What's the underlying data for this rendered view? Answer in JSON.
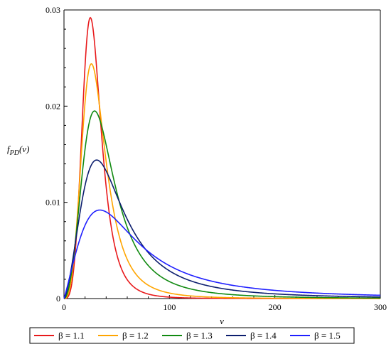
{
  "chart_data": {
    "type": "line",
    "title": "",
    "xlabel": "v",
    "ylabel_main": "f",
    "ylabel_sub": "PD",
    "ylabel_arg": "(v)",
    "xlim": [
      0,
      300
    ],
    "ylim": [
      0,
      0.03
    ],
    "x_ticks": [
      0,
      100,
      200,
      300
    ],
    "x_tick_labels": [
      "0",
      "100",
      "200",
      "300"
    ],
    "y_ticks": [
      0,
      0.01,
      0.02,
      0.03
    ],
    "y_tick_labels": [
      "0",
      "0.01",
      "0.02",
      "0.03"
    ],
    "grid": false,
    "legend_position": "bottom",
    "series": [
      {
        "name": "β = 1.1",
        "color": "#e8191b",
        "peak_x": 25,
        "peak_y": 0.0292,
        "x": [
          0,
          5,
          10,
          15,
          20,
          25,
          30,
          40,
          50,
          60,
          70,
          80,
          100,
          150,
          200,
          300
        ],
        "y": [
          0,
          0.0008,
          0.006,
          0.016,
          0.0255,
          0.0292,
          0.0268,
          0.016,
          0.0075,
          0.0032,
          0.0014,
          0.0006,
          0.0001,
          0,
          0,
          0
        ]
      },
      {
        "name": "β = 1.2",
        "color": "#ffa500",
        "peak_x": 26,
        "peak_y": 0.0244,
        "x": [
          0,
          5,
          10,
          15,
          20,
          26,
          30,
          40,
          50,
          60,
          70,
          80,
          100,
          150,
          200,
          300
        ],
        "y": [
          0,
          0.0006,
          0.0045,
          0.0125,
          0.0205,
          0.0244,
          0.0232,
          0.016,
          0.0095,
          0.0055,
          0.0032,
          0.0019,
          0.0008,
          0.0002,
          0.0001,
          0
        ]
      },
      {
        "name": "β = 1.3",
        "color": "#118a11",
        "peak_x": 29,
        "peak_y": 0.0195,
        "x": [
          0,
          5,
          10,
          15,
          20,
          29,
          35,
          40,
          50,
          60,
          70,
          80,
          100,
          150,
          200,
          300
        ],
        "y": [
          0,
          0.0004,
          0.003,
          0.009,
          0.015,
          0.0195,
          0.0184,
          0.016,
          0.0112,
          0.0075,
          0.0052,
          0.0037,
          0.0019,
          0.0006,
          0.0003,
          0.0001
        ]
      },
      {
        "name": "β = 1.4",
        "color": "#0c1e6e",
        "peak_x": 31,
        "peak_y": 0.0144,
        "x": [
          0,
          5,
          10,
          15,
          20,
          31,
          40,
          50,
          60,
          70,
          80,
          100,
          150,
          200,
          250,
          300
        ],
        "y": [
          0,
          0.0003,
          0.002,
          0.006,
          0.0105,
          0.0144,
          0.0133,
          0.0108,
          0.0082,
          0.0062,
          0.0048,
          0.0031,
          0.0013,
          0.0007,
          0.0004,
          0.0003
        ]
      },
      {
        "name": "β = 1.5",
        "color": "#1f1fff",
        "peak_x": 34,
        "peak_y": 0.0092,
        "x": [
          0,
          5,
          10,
          15,
          20,
          25,
          34,
          40,
          50,
          60,
          80,
          100,
          150,
          200,
          250,
          300
        ],
        "y": [
          0,
          0.0002,
          0.0012,
          0.0035,
          0.006,
          0.008,
          0.0092,
          0.009,
          0.0082,
          0.0071,
          0.0053,
          0.004,
          0.0021,
          0.0012,
          0.0008,
          0.0005
        ]
      }
    ]
  }
}
